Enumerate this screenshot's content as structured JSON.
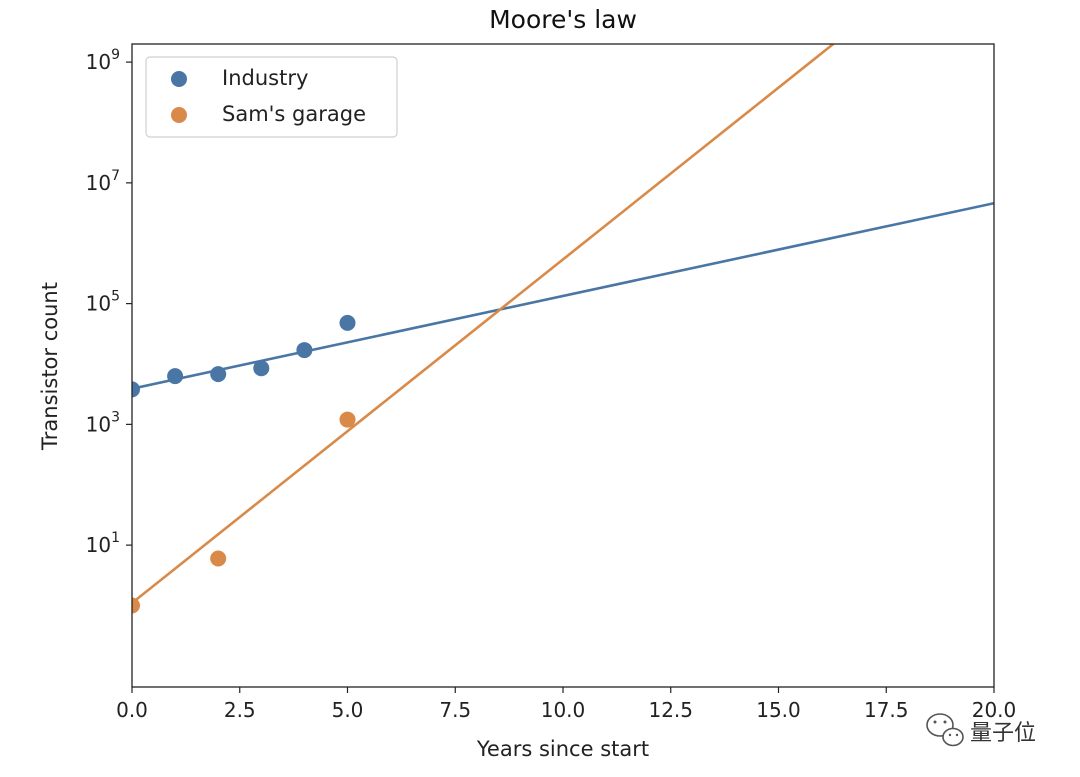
{
  "chart_data": {
    "type": "scatter",
    "title": "Moore's law",
    "xlabel": "Years since start",
    "ylabel": "Transistor count",
    "xlim": [
      0,
      20
    ],
    "ylim_log10": [
      -1.35,
      9.3
    ],
    "yscale": "log",
    "x_ticks": [
      0,
      2.5,
      5,
      7.5,
      10,
      12.5,
      15,
      17.5,
      20
    ],
    "x_tick_labels": [
      "0.0",
      "2.5",
      "5.0",
      "7.5",
      "10.0",
      "12.5",
      "15.0",
      "17.5",
      "20.0"
    ],
    "y_ticks": [
      {
        "base": "10",
        "exp": "1",
        "value": 10
      },
      {
        "base": "10",
        "exp": "3",
        "value": 1000
      },
      {
        "base": "10",
        "exp": "5",
        "value": 100000
      },
      {
        "base": "10",
        "exp": "7",
        "value": 10000000
      },
      {
        "base": "10",
        "exp": "9",
        "value": 1000000000
      }
    ],
    "grid": false,
    "legend_position": "upper-left",
    "series": [
      {
        "name": "Industry",
        "color": "#4a76a5",
        "points": [
          {
            "x": 0,
            "y": 3800
          },
          {
            "x": 1,
            "y": 6300
          },
          {
            "x": 2,
            "y": 6800
          },
          {
            "x": 3,
            "y": 8500
          },
          {
            "x": 4,
            "y": 17000
          },
          {
            "x": 5,
            "y": 48000
          }
        ],
        "fit": {
          "x": [
            0,
            20
          ],
          "y": [
            3900,
            4600000
          ]
        }
      },
      {
        "name": "Sam's garage",
        "color": "#d98a48",
        "points": [
          {
            "x": 0,
            "y": 1
          },
          {
            "x": 2,
            "y": 6
          },
          {
            "x": 5,
            "y": 1200
          }
        ],
        "fit": {
          "x": [
            0,
            17.5
          ],
          "y": [
            1.1,
            10000000000
          ]
        }
      }
    ]
  },
  "watermark": {
    "text": "量子位",
    "icon": "wechat-logo-icon"
  }
}
